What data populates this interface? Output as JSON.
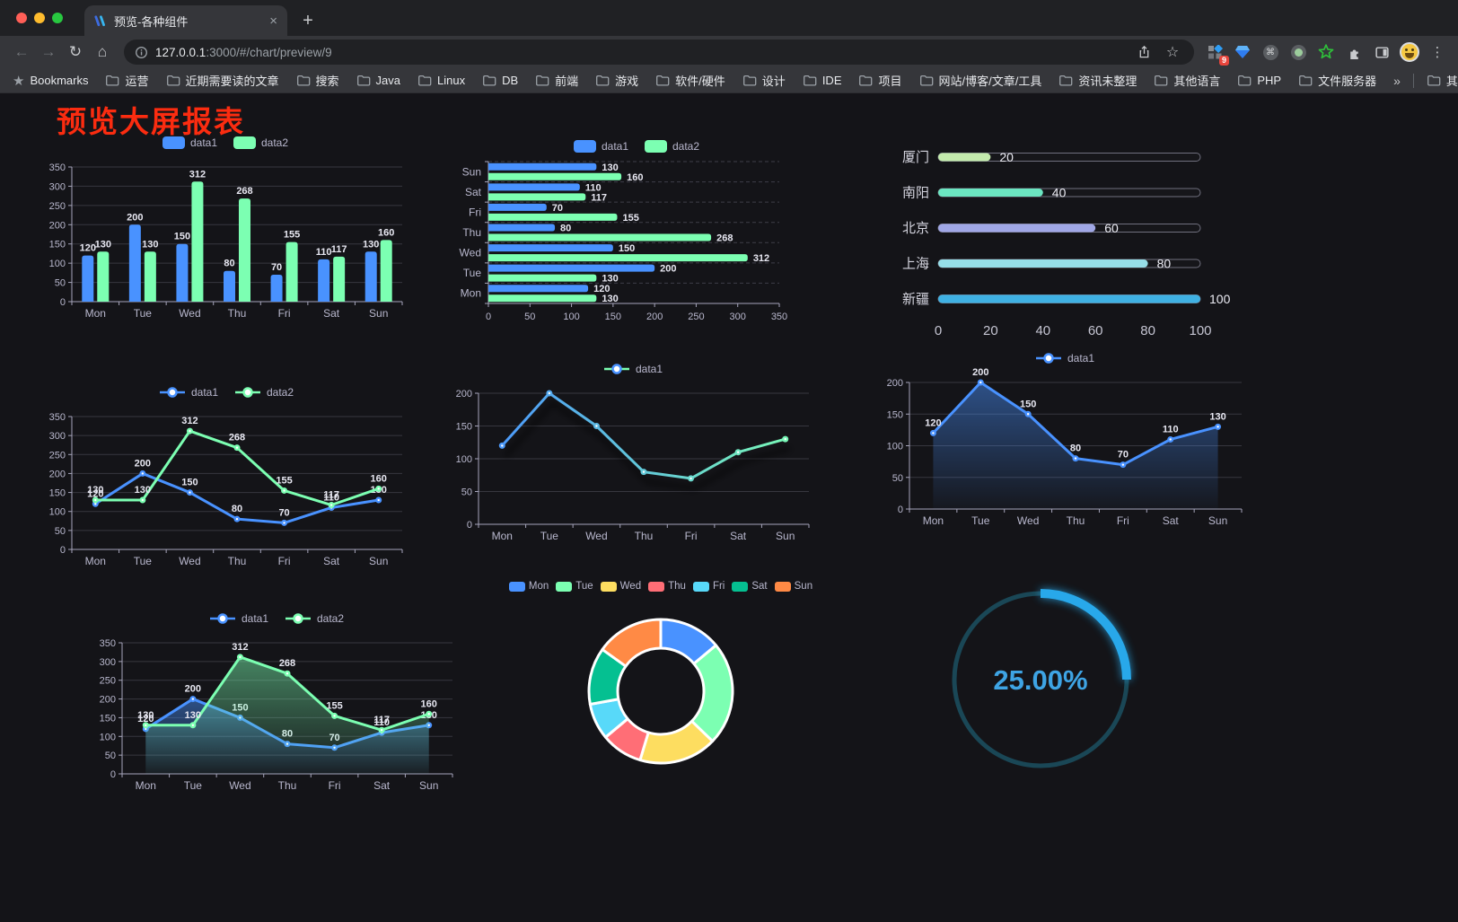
{
  "browser": {
    "tab_title": "预览-各种组件",
    "tab_close": "×",
    "new_tab": "+",
    "nav": {
      "back": "←",
      "forward": "→",
      "reload": "↻",
      "home": "⌂"
    },
    "url": {
      "host": "127.0.0.1",
      "rest": ":3000/#/chart/preview/9"
    },
    "star": "☆",
    "menu_glyph": "⋮",
    "cmd_glyph": "⌘",
    "extensions": {
      "badge": "9"
    },
    "bookmarks_label": "Bookmarks",
    "bookmarks": [
      "运营",
      "近期需要读的文章",
      "搜索",
      "Java",
      "Linux",
      "DB",
      "前端",
      "游戏",
      "软件/硬件",
      "设计",
      "IDE",
      "项目",
      "网站/博客/文章/工具",
      "资讯未整理",
      "其他语言",
      "PHP",
      "文件服务器"
    ],
    "overflow_chevron": "»",
    "other_bookmarks": "其他书签"
  },
  "page": {
    "title": "预览大屏报表",
    "title_color": "#fb2c10"
  },
  "chart_data": [
    {
      "id": "bar-vertical",
      "type": "bar",
      "categories": [
        "Mon",
        "Tue",
        "Wed",
        "Thu",
        "Fri",
        "Sat",
        "Sun"
      ],
      "series": [
        {
          "name": "data1",
          "color": "#4992ff",
          "values": [
            120,
            200,
            150,
            80,
            70,
            110,
            130
          ]
        },
        {
          "name": "data2",
          "color": "#7cffb2",
          "values": [
            130,
            130,
            312,
            268,
            155,
            117,
            160
          ]
        }
      ],
      "ylim": [
        0,
        350
      ],
      "ystep": 50,
      "grid": true,
      "legend_position": "top",
      "labels": true
    },
    {
      "id": "bar-horizontal",
      "type": "bar-horizontal",
      "category_order": "top-to-bottom",
      "categories": [
        "Sun",
        "Sat",
        "Fri",
        "Thu",
        "Wed",
        "Tue",
        "Mon"
      ],
      "series": [
        {
          "name": "data1",
          "color": "#4992ff",
          "values": [
            130,
            110,
            70,
            80,
            150,
            200,
            120
          ]
        },
        {
          "name": "data2",
          "color": "#7cffb2",
          "values": [
            160,
            117,
            155,
            268,
            312,
            130,
            130
          ]
        }
      ],
      "xlim": [
        0,
        350
      ],
      "xstep": 50,
      "legend_position": "top",
      "labels": true
    },
    {
      "id": "progress-bars",
      "type": "bar-horizontal",
      "style": "progress",
      "rows": [
        {
          "label": "厦门",
          "value": 20,
          "color": "#c4ebad"
        },
        {
          "label": "南阳",
          "value": 40,
          "color": "#6be6c1"
        },
        {
          "label": "北京",
          "value": 60,
          "color": "#a0a7e6"
        },
        {
          "label": "上海",
          "value": 80,
          "color": "#96dee8"
        },
        {
          "label": "新疆",
          "value": 100,
          "color": "#3fb1e3"
        }
      ],
      "xlim": [
        0,
        100
      ],
      "xticks": [
        0,
        20,
        40,
        60,
        80,
        100
      ]
    },
    {
      "id": "line-two-series",
      "type": "line",
      "categories": [
        "Mon",
        "Tue",
        "Wed",
        "Thu",
        "Fri",
        "Sat",
        "Sun"
      ],
      "series": [
        {
          "name": "data1",
          "color": "#4992ff",
          "values": [
            120,
            200,
            150,
            80,
            70,
            110,
            130
          ]
        },
        {
          "name": "data2",
          "color": "#7cffb2",
          "values": [
            130,
            130,
            312,
            268,
            155,
            117,
            160
          ]
        }
      ],
      "ylim": [
        0,
        350
      ],
      "ystep": 50,
      "labels": true,
      "legend_position": "top"
    },
    {
      "id": "line-gradient-shadow",
      "type": "line",
      "categories": [
        "Mon",
        "Tue",
        "Wed",
        "Thu",
        "Fri",
        "Sat",
        "Sun"
      ],
      "series": [
        {
          "name": "data1",
          "gradient": [
            "#4992ff",
            "#7cffb2"
          ],
          "shadow": true,
          "legend_dot": "#4992ff",
          "legend_line": "#7cffb2",
          "values": [
            120,
            200,
            150,
            80,
            70,
            110,
            130
          ]
        }
      ],
      "ylim": [
        0,
        200
      ],
      "ystep": 50,
      "labels": false,
      "legend_position": "top"
    },
    {
      "id": "line-area",
      "type": "line",
      "categories": [
        "Mon",
        "Tue",
        "Wed",
        "Thu",
        "Fri",
        "Sat",
        "Sun"
      ],
      "series": [
        {
          "name": "data1",
          "color": "#4992ff",
          "area": true,
          "values": [
            120,
            200,
            150,
            80,
            70,
            110,
            130
          ]
        }
      ],
      "ylim": [
        0,
        200
      ],
      "ystep": 50,
      "labels": true,
      "legend_position": "top"
    },
    {
      "id": "line-area-two",
      "type": "line",
      "categories": [
        "Mon",
        "Tue",
        "Wed",
        "Thu",
        "Fri",
        "Sat",
        "Sun"
      ],
      "series": [
        {
          "name": "data1",
          "color": "#4992ff",
          "area": true,
          "values": [
            120,
            200,
            150,
            80,
            70,
            110,
            130
          ]
        },
        {
          "name": "data2",
          "color": "#7cffb2",
          "area": true,
          "values": [
            130,
            130,
            312,
            268,
            155,
            117,
            160
          ]
        }
      ],
      "ylim": [
        0,
        350
      ],
      "ystep": 50,
      "labels": true,
      "legend_position": "top"
    },
    {
      "id": "donut",
      "type": "pie",
      "inner_radius_ratio": 0.6,
      "border_color": "#ffffff",
      "items": [
        {
          "label": "Mon",
          "value": 120,
          "color": "#4992ff"
        },
        {
          "label": "Tue",
          "value": 200,
          "color": "#7cffb2"
        },
        {
          "label": "Wed",
          "value": 150,
          "color": "#fddd60"
        },
        {
          "label": "Thu",
          "value": 80,
          "color": "#ff6e76"
        },
        {
          "label": "Fri",
          "value": 70,
          "color": "#58d9f9"
        },
        {
          "label": "Sat",
          "value": 110,
          "color": "#05c091"
        },
        {
          "label": "Sun",
          "value": 130,
          "color": "#ff8a45"
        }
      ],
      "legend_position": "top"
    },
    {
      "id": "gauge",
      "type": "gauge",
      "value": 25,
      "label": "25.00%",
      "arc_color": "#28a8ea",
      "track_color": "#1a4756",
      "text_color": "#3ea4e4"
    }
  ],
  "theme": {
    "axis_label_color": "#b9b8ce",
    "axis_line_color": "#a6a5bb",
    "grid_line_color": "#37373f",
    "value_label_color": "#e8e8f2",
    "page_background": "#141418"
  }
}
